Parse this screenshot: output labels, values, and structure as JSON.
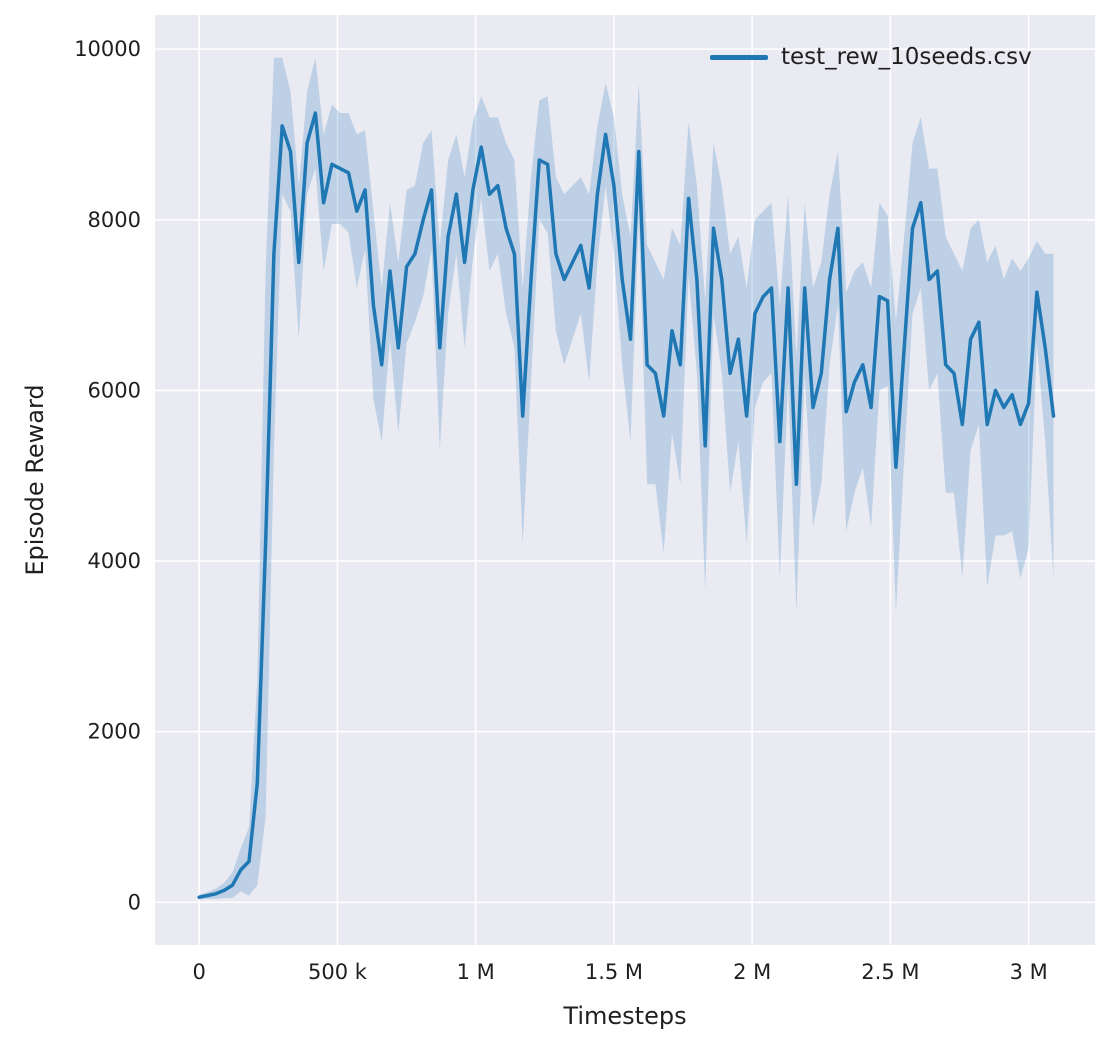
{
  "chart_data": {
    "type": "line",
    "title": "",
    "xlabel": "Timesteps",
    "ylabel": "Episode Reward",
    "legend_position": "upper right",
    "grid": true,
    "background": "#eaeaf2",
    "figure_background": "#ffffff",
    "grid_color": "#ffffff",
    "text_color": "#1f1f1f",
    "xlim": [
      -160000,
      3240000
    ],
    "ylim": [
      -500,
      10400
    ],
    "xticks": {
      "values": [
        0,
        500000,
        1000000,
        1500000,
        2000000,
        2500000,
        3000000
      ],
      "labels": [
        "0",
        "500 k",
        "1 M",
        "1.5 M",
        "2 M",
        "2.5 M",
        "3 M"
      ]
    },
    "yticks": {
      "values": [
        0,
        2000,
        4000,
        6000,
        8000,
        10000
      ],
      "labels": [
        "0",
        "2000",
        "4000",
        "6000",
        "8000",
        "10000"
      ]
    },
    "band_note": "shaded region spans mean - spread to mean + spread",
    "series": [
      {
        "name": "test_rew_10seeds.csv",
        "color": "#1f77b4",
        "band_opacity": 0.22,
        "x": [
          0,
          30000,
          60000,
          90000,
          120000,
          150000,
          180000,
          210000,
          240000,
          270000,
          300000,
          330000,
          360000,
          390000,
          420000,
          450000,
          480000,
          510000,
          540000,
          570000,
          600000,
          630000,
          660000,
          690000,
          720000,
          750000,
          780000,
          810000,
          840000,
          870000,
          900000,
          930000,
          960000,
          990000,
          1020000,
          1050000,
          1080000,
          1110000,
          1140000,
          1170000,
          1200000,
          1230000,
          1260000,
          1290000,
          1320000,
          1350000,
          1380000,
          1410000,
          1440000,
          1470000,
          1500000,
          1530000,
          1560000,
          1590000,
          1620000,
          1650000,
          1680000,
          1710000,
          1740000,
          1770000,
          1800000,
          1830000,
          1860000,
          1890000,
          1920000,
          1950000,
          1980000,
          2010000,
          2040000,
          2070000,
          2100000,
          2130000,
          2160000,
          2190000,
          2220000,
          2250000,
          2280000,
          2310000,
          2340000,
          2370000,
          2400000,
          2430000,
          2460000,
          2490000,
          2520000,
          2550000,
          2580000,
          2610000,
          2640000,
          2670000,
          2700000,
          2730000,
          2760000,
          2790000,
          2820000,
          2850000,
          2880000,
          2910000,
          2940000,
          2970000,
          3000000,
          3030000,
          3060000,
          3090000
        ],
        "mean": [
          60,
          80,
          100,
          140,
          200,
          380,
          480,
          1400,
          4200,
          7600,
          9100,
          8800,
          7500,
          8900,
          9250,
          8200,
          8650,
          8600,
          8550,
          8100,
          8350,
          7000,
          6300,
          7400,
          6500,
          7450,
          7600,
          8000,
          8350,
          6500,
          7800,
          8300,
          7500,
          8350,
          8850,
          8300,
          8400,
          7900,
          7600,
          5700,
          7300,
          8700,
          8650,
          7600,
          7300,
          7500,
          7700,
          7200,
          8300,
          9000,
          8400,
          7300,
          6600,
          8800,
          6300,
          6200,
          5700,
          6700,
          6300,
          8250,
          7300,
          5350,
          7900,
          7300,
          6200,
          6600,
          5700,
          6900,
          7100,
          7200,
          5400,
          7200,
          4900,
          7200,
          5800,
          6200,
          7300,
          7900,
          5750,
          6100,
          6300,
          5800,
          7100,
          7050,
          5100,
          6500,
          7900,
          8200,
          7300,
          7400,
          6300,
          6200,
          5600,
          6600,
          6800,
          5600,
          6000,
          5800,
          5950,
          5600,
          5850,
          7150,
          6500,
          5700
        ],
        "spread": [
          30,
          40,
          60,
          90,
          150,
          250,
          400,
          1200,
          3200,
          2300,
          800,
          700,
          900,
          600,
          650,
          800,
          700,
          650,
          700,
          900,
          700,
          1100,
          900,
          800,
          1000,
          900,
          800,
          900,
          700,
          1200,
          900,
          700,
          1000,
          800,
          600,
          900,
          800,
          1000,
          1100,
          1500,
          1200,
          700,
          800,
          900,
          1000,
          900,
          800,
          1100,
          800,
          600,
          800,
          1000,
          1200,
          800,
          1400,
          1300,
          1600,
          1200,
          1400,
          900,
          1100,
          1700,
          1000,
          1100,
          1400,
          1200,
          1500,
          1100,
          1000,
          1000,
          1600,
          1100,
          1500,
          1000,
          1400,
          1300,
          1000,
          900,
          1400,
          1300,
          1200,
          1400,
          1100,
          1000,
          1700,
          1300,
          1000,
          1000,
          1300,
          1200,
          1500,
          1400,
          1800,
          1300,
          1200,
          1900,
          1700,
          1500,
          1600,
          1800,
          1700,
          600,
          1100,
          1900
        ]
      }
    ]
  }
}
